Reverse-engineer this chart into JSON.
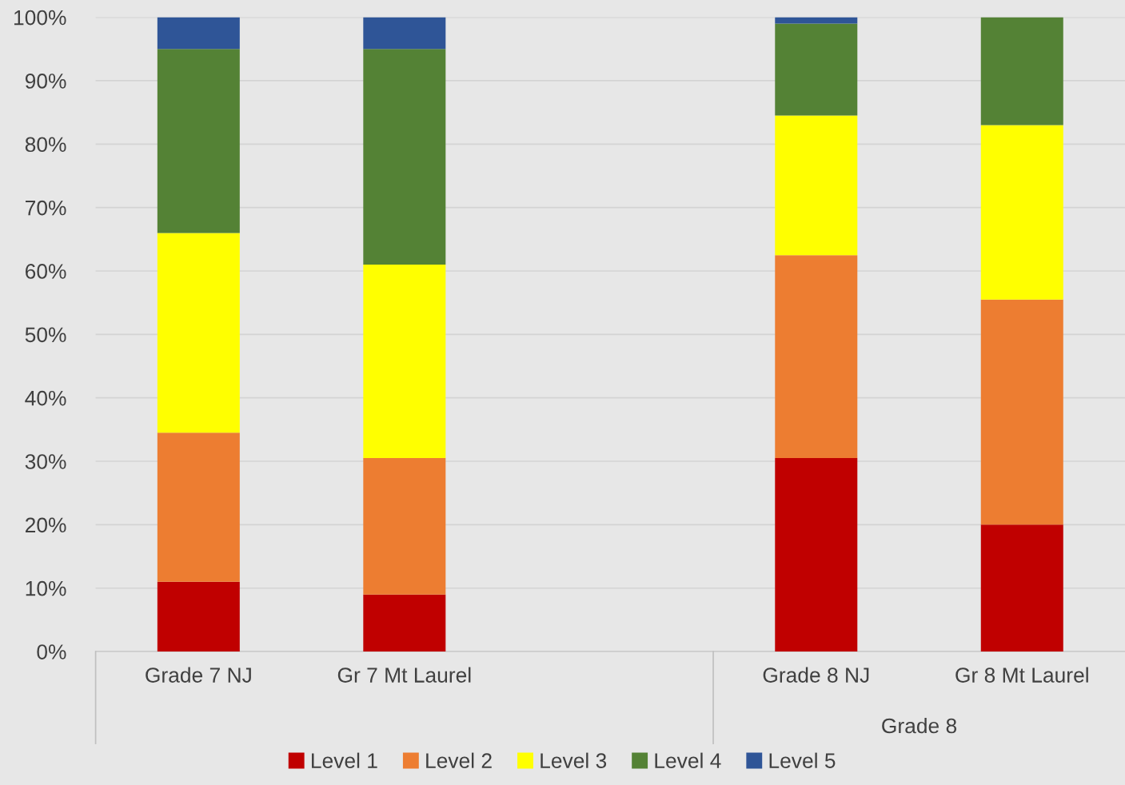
{
  "chart_data": {
    "type": "bar",
    "stacked": true,
    "categories": [
      "Grade 7 NJ",
      "Gr 7 Mt Laurel",
      null,
      "Grade 8 NJ",
      "Gr 8 Mt Laurel"
    ],
    "series": [
      {
        "name": "Level 1",
        "color": "#c00000",
        "values": [
          11,
          9,
          null,
          30.5,
          20
        ]
      },
      {
        "name": "Level 2",
        "color": "#ed7d31",
        "values": [
          23.5,
          21.5,
          null,
          32,
          35.5
        ]
      },
      {
        "name": "Level 3",
        "color": "#ffff00",
        "values": [
          31.5,
          30.5,
          null,
          22,
          27.5
        ]
      },
      {
        "name": "Level 4",
        "color": "#548235",
        "values": [
          29,
          34,
          null,
          14.5,
          17
        ]
      },
      {
        "name": "Level 5",
        "color": "#2f5597",
        "values": [
          5,
          5,
          null,
          1,
          0
        ]
      }
    ],
    "ylim": [
      0,
      100
    ],
    "yticks": [
      {
        "value": 0,
        "label": "0%"
      },
      {
        "value": 10,
        "label": "10%"
      },
      {
        "value": 20,
        "label": "20%"
      },
      {
        "value": 30,
        "label": "30%"
      },
      {
        "value": 40,
        "label": "40%"
      },
      {
        "value": 50,
        "label": "50%"
      },
      {
        "value": 60,
        "label": "60%"
      },
      {
        "value": 70,
        "label": "70%"
      },
      {
        "value": 80,
        "label": "80%"
      },
      {
        "value": 90,
        "label": "90%"
      },
      {
        "value": 100,
        "label": "100%"
      }
    ],
    "grid": "y",
    "legend": "bottom",
    "annotations": [
      "Grade 8"
    ]
  }
}
